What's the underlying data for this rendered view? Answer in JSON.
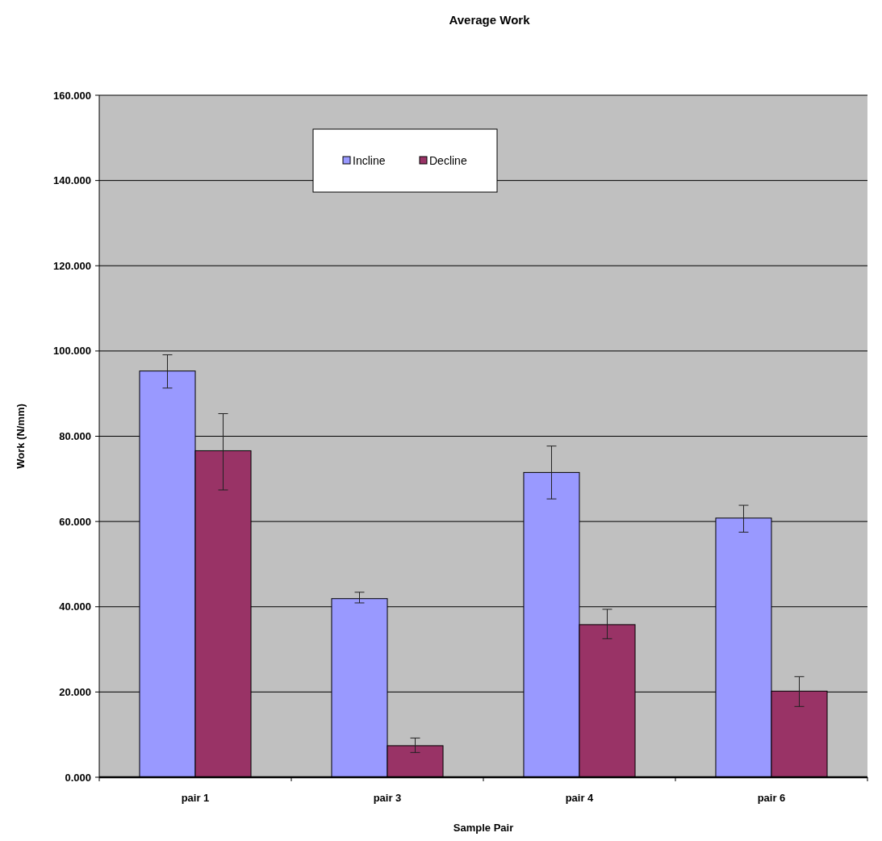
{
  "chart_data": {
    "type": "bar",
    "title": "Average Work",
    "xlabel": "Sample Pair",
    "ylabel": "Work (N/mm)",
    "categories": [
      "pair 1",
      "pair 3",
      "pair 4",
      "pair 6"
    ],
    "series": [
      {
        "name": "Incline",
        "color": "#9999ff",
        "values": [
          95.3,
          41.9,
          71.5,
          60.8
        ],
        "errors": [
          [
            91.3,
            99.1
          ],
          [
            40.9,
            43.4
          ],
          [
            65.3,
            77.7
          ],
          [
            57.5,
            63.8
          ]
        ]
      },
      {
        "name": "Decline",
        "color": "#993366",
        "values": [
          76.6,
          7.4,
          35.8,
          20.2
        ],
        "errors": [
          [
            67.4,
            85.3
          ],
          [
            5.8,
            9.2
          ],
          [
            32.5,
            39.4
          ],
          [
            16.6,
            23.6
          ]
        ]
      }
    ],
    "ylim": [
      0,
      160
    ],
    "yticks": [
      {
        "value": 0,
        "label": "0.000"
      },
      {
        "value": 20,
        "label": "20.000"
      },
      {
        "value": 40,
        "label": "40.000"
      },
      {
        "value": 60,
        "label": "60.000"
      },
      {
        "value": 80,
        "label": "80.000"
      },
      {
        "value": 100,
        "label": "100.000"
      },
      {
        "value": 120,
        "label": "120.000"
      },
      {
        "value": 140,
        "label": "140.000"
      },
      {
        "value": 160,
        "label": "160.000"
      }
    ],
    "grid": "y",
    "legend": "top"
  }
}
